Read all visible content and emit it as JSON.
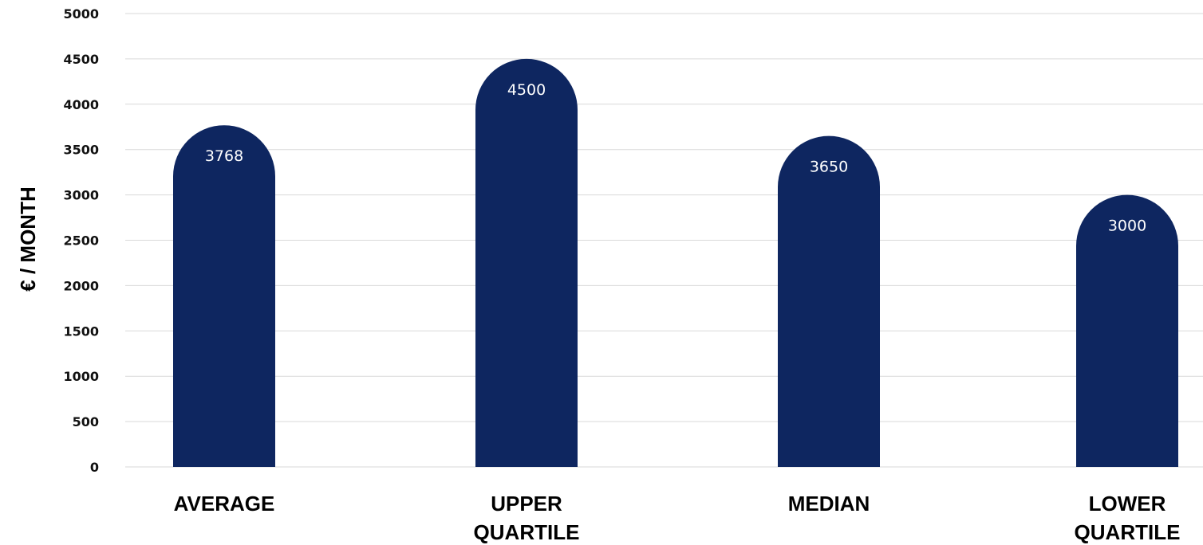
{
  "chart_data": {
    "type": "bar",
    "categories": [
      [
        "AVERAGE"
      ],
      [
        "UPPER",
        "QUARTILE"
      ],
      [
        "MEDIAN"
      ],
      [
        "LOWER",
        "QUARTILE"
      ]
    ],
    "values": [
      3768,
      4500,
      3650,
      3000
    ],
    "data_labels": [
      "3768",
      "4500",
      "3650",
      "3000"
    ],
    "ylabel": "€ / MONTH",
    "ylim": [
      0,
      5000
    ],
    "yticks": [
      0,
      500,
      1000,
      1500,
      2000,
      2500,
      3000,
      3500,
      4000,
      4500,
      5000
    ],
    "grid": true,
    "bar_color": "#0e2660"
  }
}
